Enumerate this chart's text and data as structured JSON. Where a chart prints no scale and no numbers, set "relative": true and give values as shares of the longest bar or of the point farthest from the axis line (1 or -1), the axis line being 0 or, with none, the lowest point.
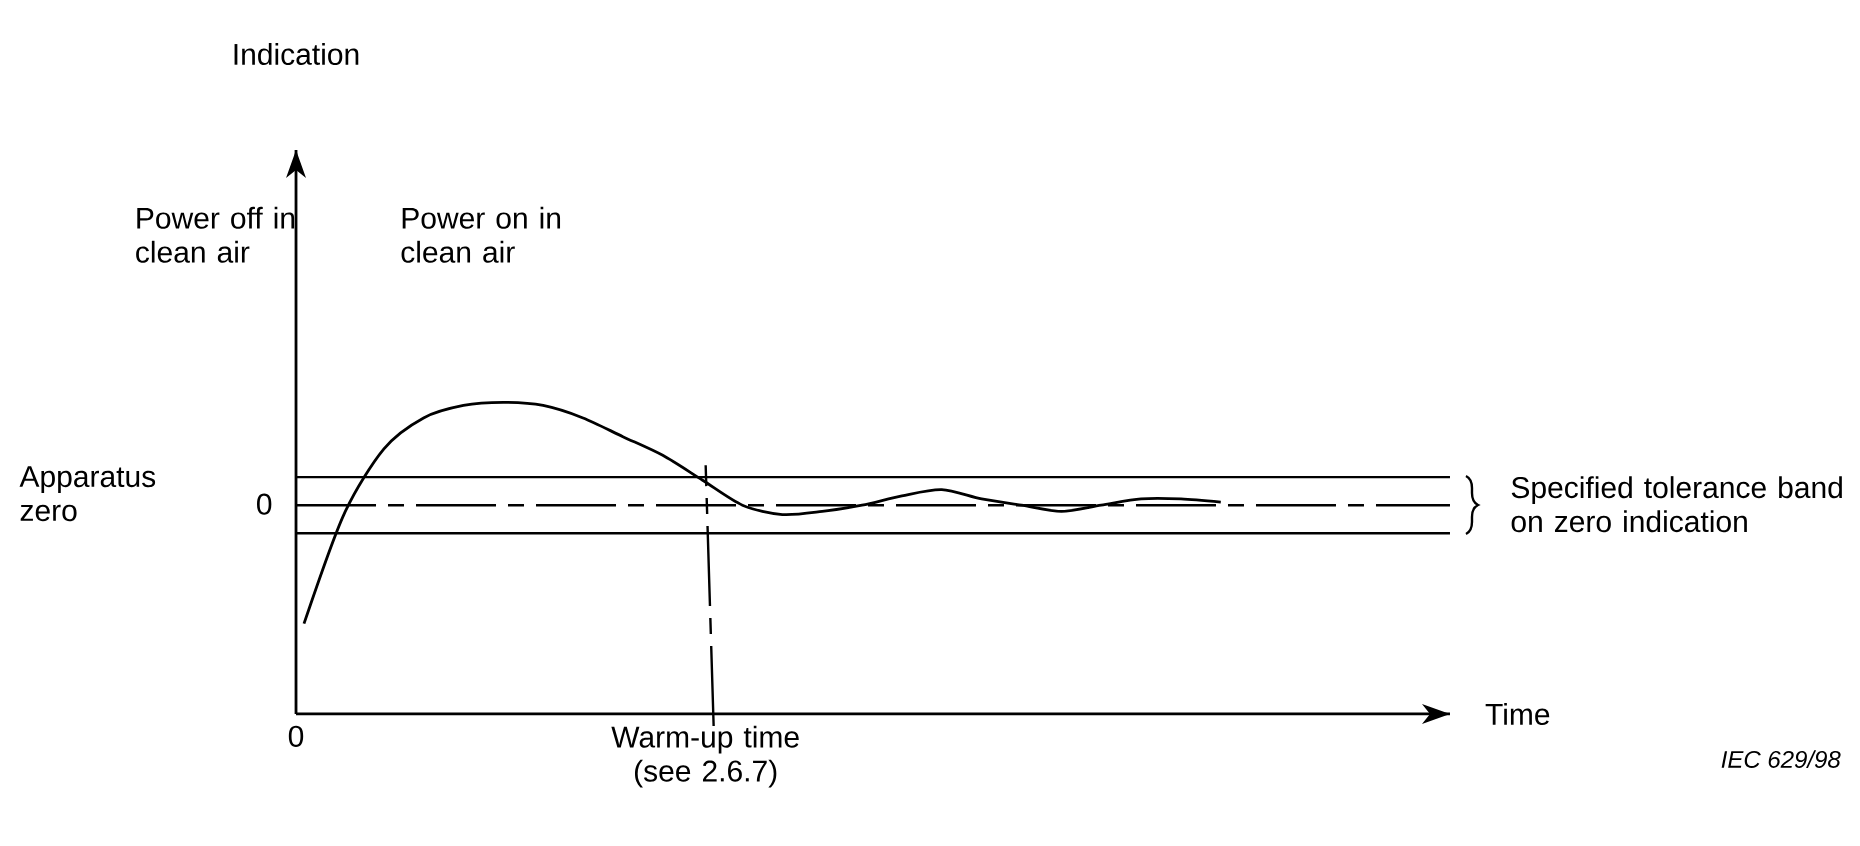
{
  "chart_data": {
    "type": "line",
    "relative": true,
    "categories": [
      null,
      null,
      null,
      null,
      null,
      null,
      null,
      null,
      null,
      null,
      null,
      null,
      null,
      null,
      null,
      null,
      null,
      null,
      null,
      null,
      null,
      null,
      null,
      null
    ],
    "series": [
      {
        "color": "#000000",
        "values": [
          0.29,
          0.64,
          0.85,
          0.95,
          0.99,
          1.0,
          0.99,
          0.95,
          0.89,
          0.83,
          0.75,
          0.67,
          0.64,
          0.65,
          0.67,
          0.7,
          0.72,
          0.69,
          0.67,
          0.65,
          0.67,
          0.69,
          0.69,
          0.68
        ]
      }
    ],
    "ref_lines": [
      {
        "axis": "y",
        "value": 0.67,
        "line_style": "dashed"
      },
      {
        "axis": "y",
        "value": 0.58,
        "line_style": "solid"
      },
      {
        "axis": "y",
        "value": 0.76,
        "line_style": "solid"
      }
    ],
    "annotations": [
      "Power off in clean air",
      "Power on in clean air",
      "Apparatus zero",
      "IEC 629/98",
      "0",
      "Specified tolerance band on zero indication",
      "0",
      "Warm-up time (see 2.6.7)",
      "Indication",
      "Time"
    ],
    "marker": "none",
    "line_style": "solid"
  }
}
